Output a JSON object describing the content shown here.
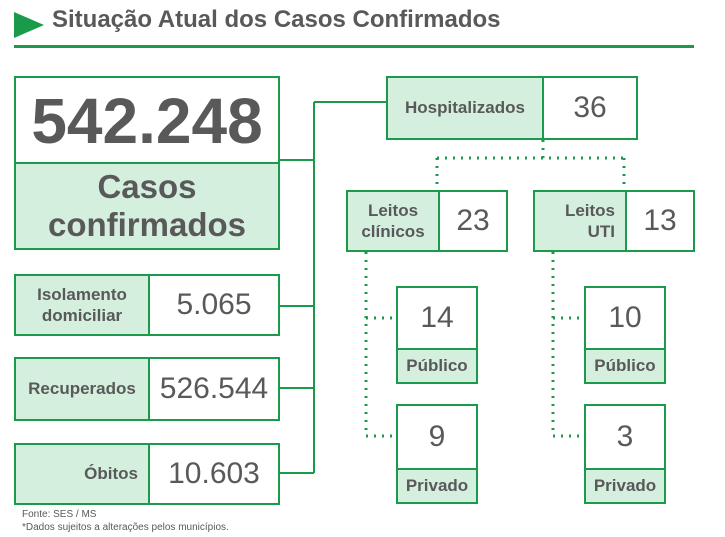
{
  "title": "Situação Atual dos Casos Confirmados",
  "colors": {
    "accent": "#1a9b4b",
    "label_fill": "#d4efde",
    "text": "#595959"
  },
  "main": {
    "value": "542.248",
    "label_line1": "Casos",
    "label_line2": "confirmados"
  },
  "isolamento": {
    "label_line1": "Isolamento",
    "label_line2": "domiciliar",
    "value": "5.065"
  },
  "recuperados": {
    "label": "Recuperados",
    "value": "526.544"
  },
  "obitos": {
    "label": "Óbitos",
    "value": "10.603"
  },
  "hospitalizados": {
    "label": "Hospitalizados",
    "value": "36"
  },
  "leitos_clinicos": {
    "label_line1": "Leitos",
    "label_line2": "clínicos",
    "value": "23",
    "publico": {
      "value": "14",
      "label": "Público"
    },
    "privado": {
      "value": "9",
      "label": "Privado"
    }
  },
  "leitos_uti": {
    "label_line1": "Leitos",
    "label_line2": "UTI",
    "value": "13",
    "publico": {
      "value": "10",
      "label": "Público"
    },
    "privado": {
      "value": "3",
      "label": "Privado"
    }
  },
  "footer": {
    "source": "Fonte: SES / MS",
    "note": "*Dados sujeitos a alterações pelos municípios."
  }
}
